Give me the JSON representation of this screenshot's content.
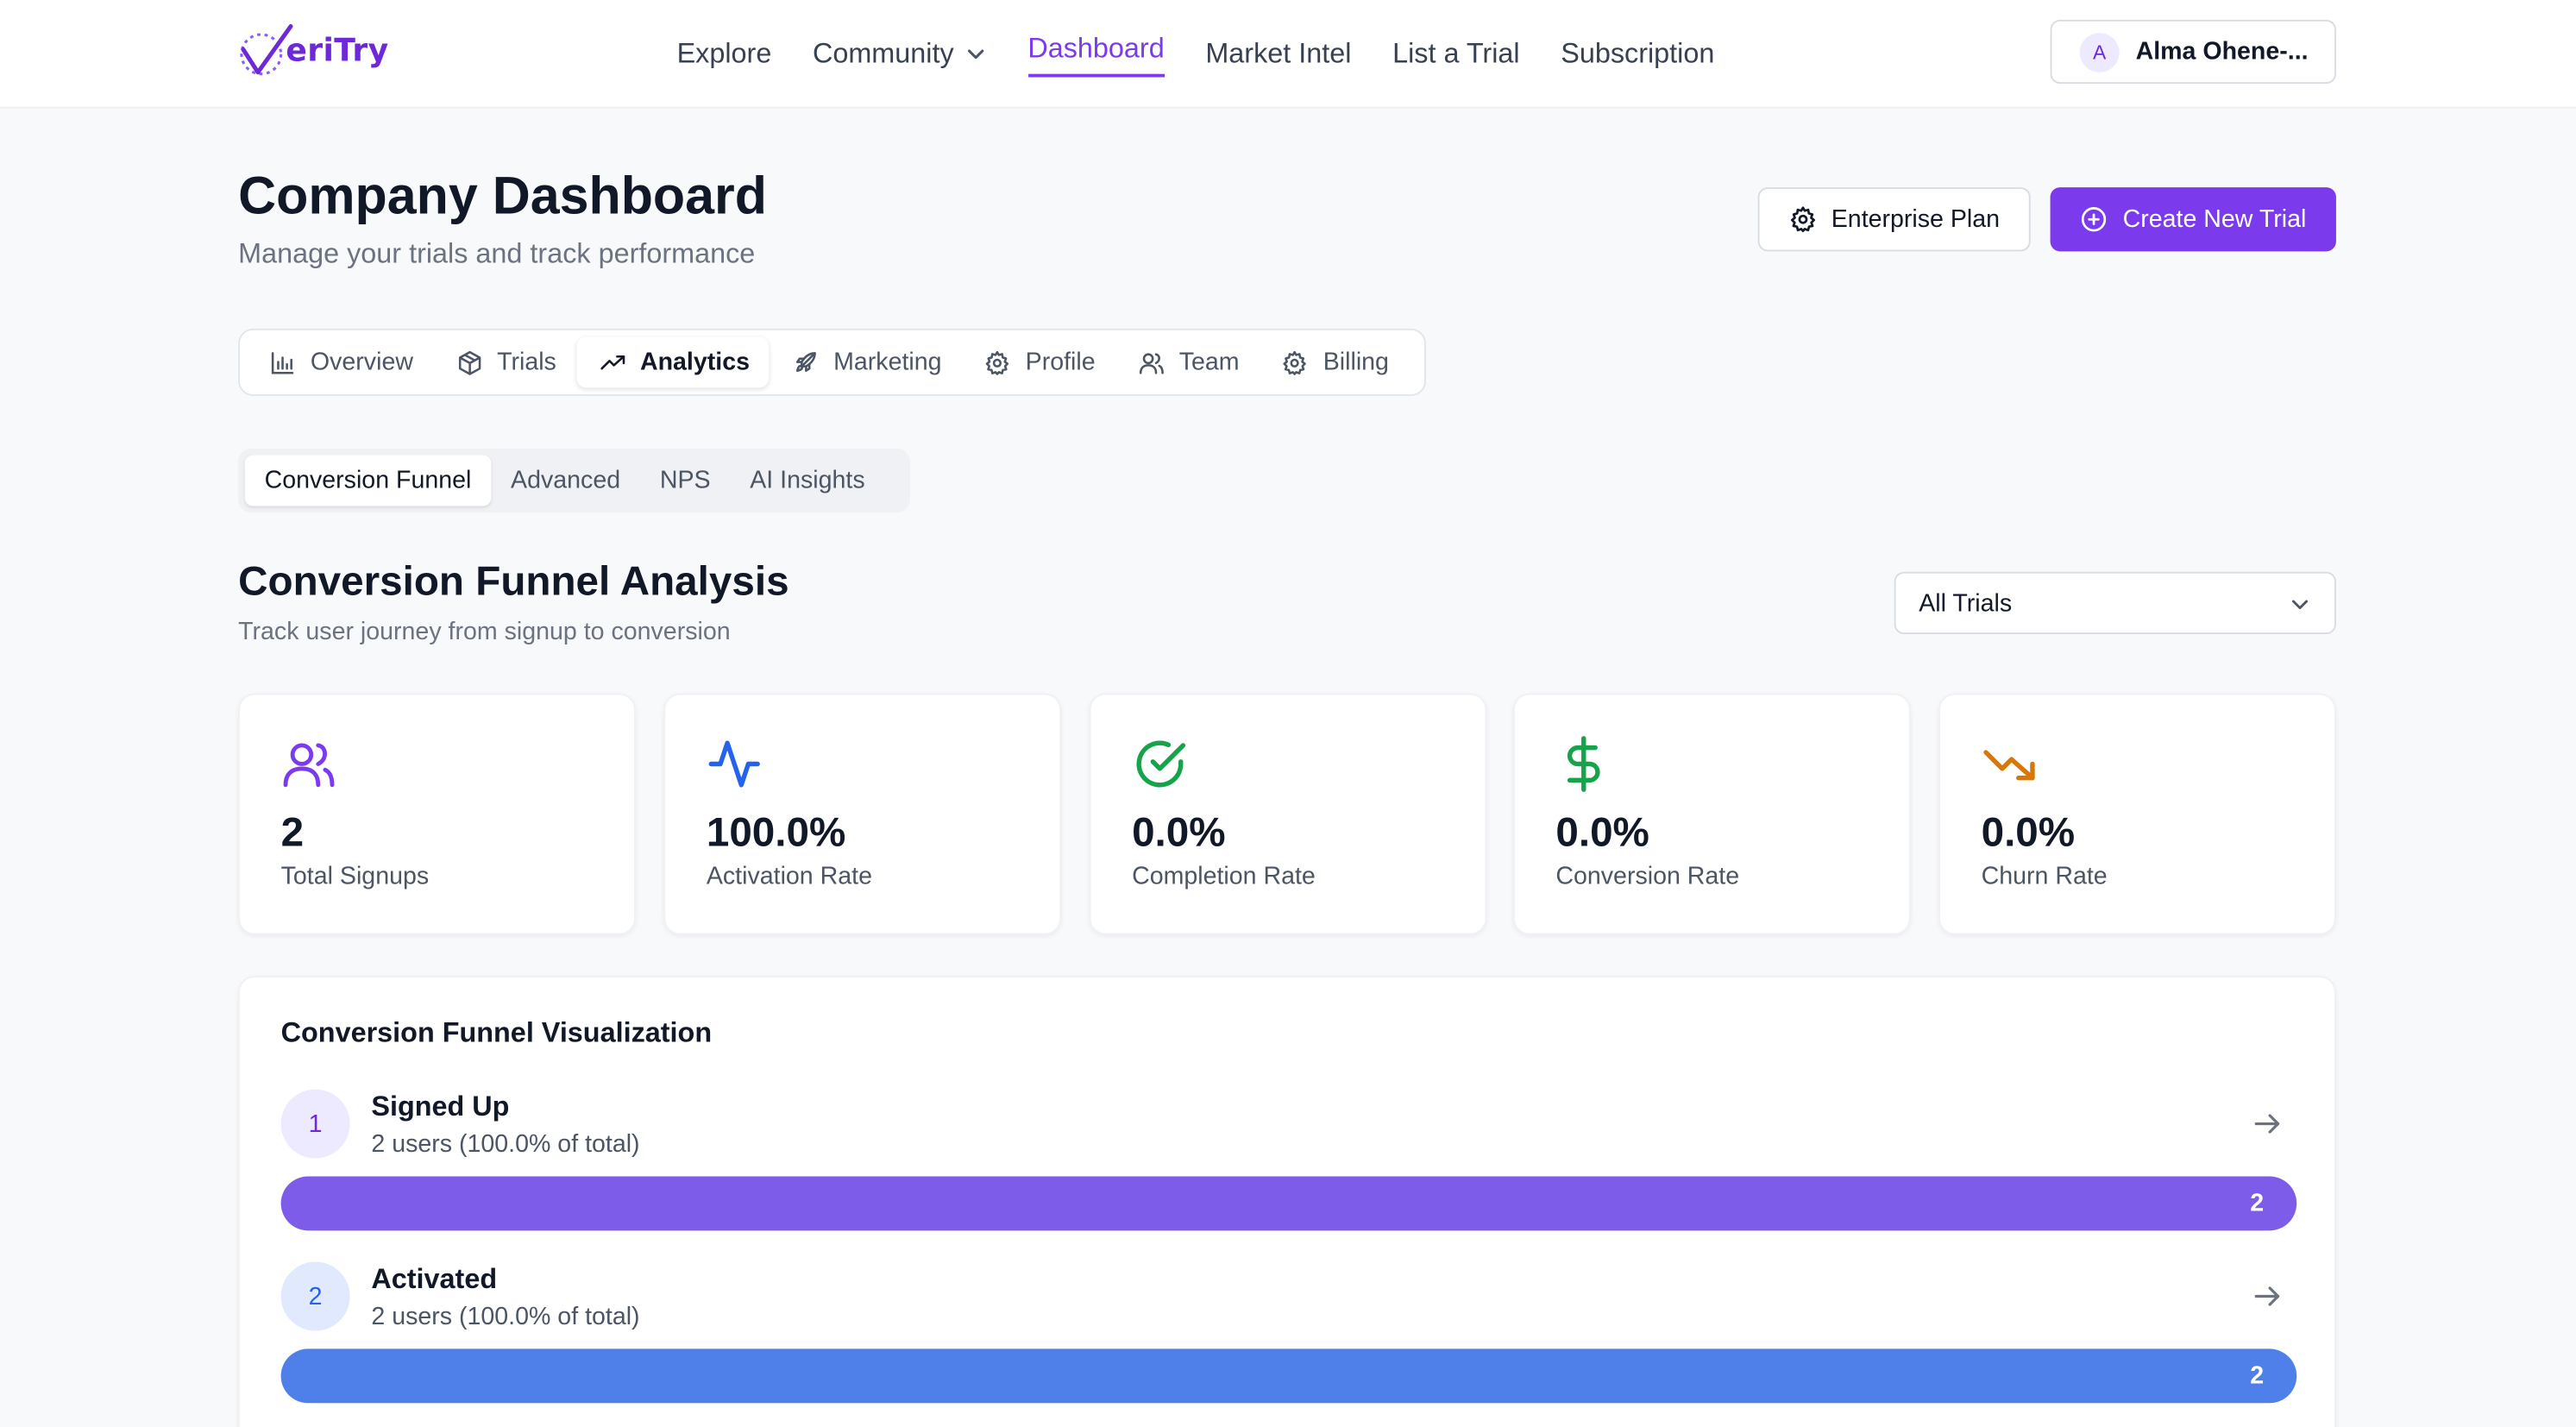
{
  "brand": {
    "name": "eriTry",
    "accent": "#7c3aed"
  },
  "nav": {
    "items": [
      {
        "label": "Explore"
      },
      {
        "label": "Community",
        "has_menu": true
      },
      {
        "label": "Dashboard",
        "active": true
      },
      {
        "label": "Market Intel"
      },
      {
        "label": "List a Trial"
      },
      {
        "label": "Subscription"
      }
    ]
  },
  "user": {
    "initial": "A",
    "name": "Alma Ohene-..."
  },
  "page": {
    "title": "Company Dashboard",
    "subtitle": "Manage your trials and track performance",
    "plan_button": "Enterprise Plan",
    "create_button": "Create New Trial"
  },
  "tabs": [
    {
      "label": "Overview",
      "icon": "bar-chart-icon"
    },
    {
      "label": "Trials",
      "icon": "package-icon"
    },
    {
      "label": "Analytics",
      "icon": "trending-up-icon",
      "active": true
    },
    {
      "label": "Marketing",
      "icon": "rocket-icon"
    },
    {
      "label": "Profile",
      "icon": "gear-icon"
    },
    {
      "label": "Team",
      "icon": "users-icon"
    },
    {
      "label": "Billing",
      "icon": "gear-icon"
    }
  ],
  "subtabs": [
    {
      "label": "Conversion Funnel",
      "active": true
    },
    {
      "label": "Advanced"
    },
    {
      "label": "NPS"
    },
    {
      "label": "AI Insights"
    }
  ],
  "section": {
    "title": "Conversion Funnel Analysis",
    "subtitle": "Track user journey from signup to conversion",
    "filter": {
      "selected": "All Trials"
    }
  },
  "stats": [
    {
      "value": "2",
      "label": "Total Signups",
      "icon": "users-icon",
      "color": "#7c3aed"
    },
    {
      "value": "100.0%",
      "label": "Activation Rate",
      "icon": "activity-icon",
      "color": "#2563eb"
    },
    {
      "value": "0.0%",
      "label": "Completion Rate",
      "icon": "check-circle-icon",
      "color": "#16a34a"
    },
    {
      "value": "0.0%",
      "label": "Conversion Rate",
      "icon": "dollar-icon",
      "color": "#16a34a"
    },
    {
      "value": "0.0%",
      "label": "Churn Rate",
      "icon": "trending-down-icon",
      "color": "#d97706"
    }
  ],
  "funnel": {
    "title": "Conversion Funnel Visualization",
    "stages": [
      {
        "step": "1",
        "name": "Signed Up",
        "meta": "2 users (100.0% of total)",
        "count": "2",
        "fill_fraction": 1.0,
        "color": "#7c5ce8",
        "badge_bg": "#ede9fe",
        "badge_fg": "#6d28d9"
      },
      {
        "step": "2",
        "name": "Activated",
        "meta": "2 users (100.0% of total)",
        "count": "2",
        "fill_fraction": 1.0,
        "color": "#4f80ea",
        "badge_bg": "#e0e9fd",
        "badge_fg": "#2563eb"
      }
    ]
  }
}
